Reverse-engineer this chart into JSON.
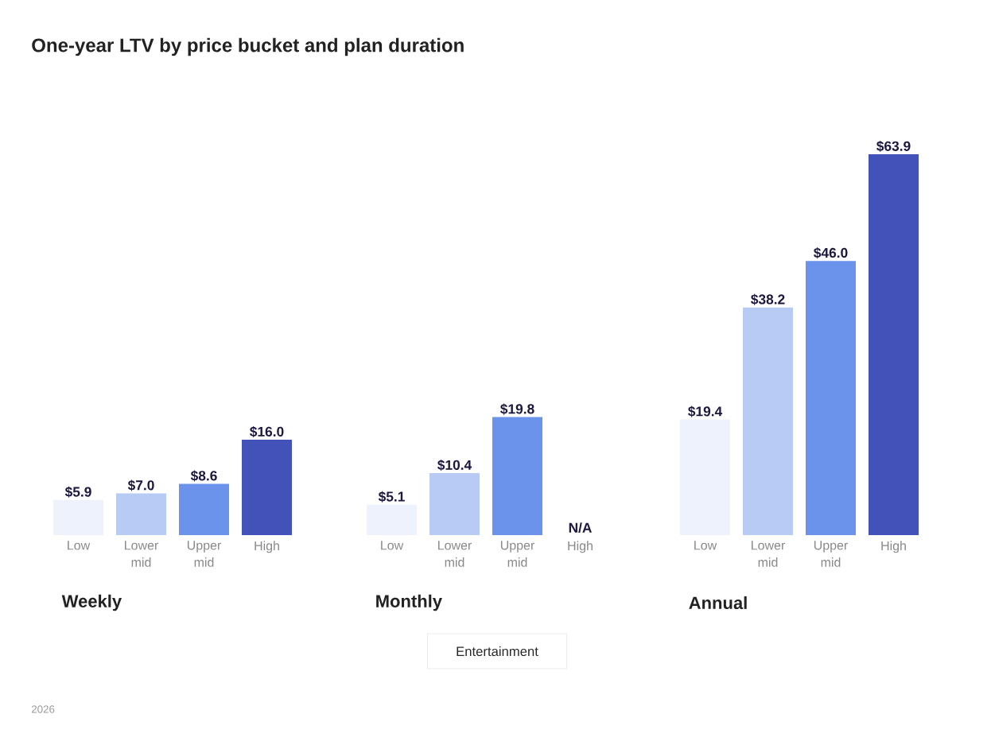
{
  "chart_data": [
    {
      "type": "bar",
      "title": "One-year LTV by price bucket and plan duration",
      "xlabel": "Weekly",
      "categories": [
        "Low",
        "Lower mid",
        "Upper mid",
        "High"
      ],
      "values": [
        5.9,
        7.0,
        8.6,
        16.0
      ],
      "value_labels": [
        "$5.9",
        "$7.0",
        "$8.6",
        "$16.0"
      ],
      "colors": [
        "#edf2fc",
        "#b8cbf5",
        "#6b93ec",
        "#4252b8"
      ],
      "annotations": [
        "Entertainment",
        "2026"
      ]
    },
    {
      "type": "bar",
      "xlabel": "Monthly",
      "categories": [
        "Low",
        "Lower mid",
        "Upper mid",
        "High"
      ],
      "values": [
        5.1,
        10.4,
        19.8,
        null
      ],
      "value_labels": [
        "$5.1",
        "$10.4",
        "$19.8",
        "N/A"
      ],
      "colors": [
        "#edf2fc",
        "#b8cbf5",
        "#6b93ec",
        "#4252b8"
      ]
    },
    {
      "type": "bar",
      "xlabel": "Annual",
      "categories": [
        "Low",
        "Lower mid",
        "Upper mid",
        "High"
      ],
      "values": [
        19.4,
        38.2,
        46.0,
        63.9
      ],
      "value_labels": [
        "$19.4",
        "$38.2",
        "$46.0",
        "$63.9"
      ],
      "colors": [
        "#edf2fc",
        "#b8cbf5",
        "#6b93ec",
        "#4252b8"
      ]
    }
  ]
}
